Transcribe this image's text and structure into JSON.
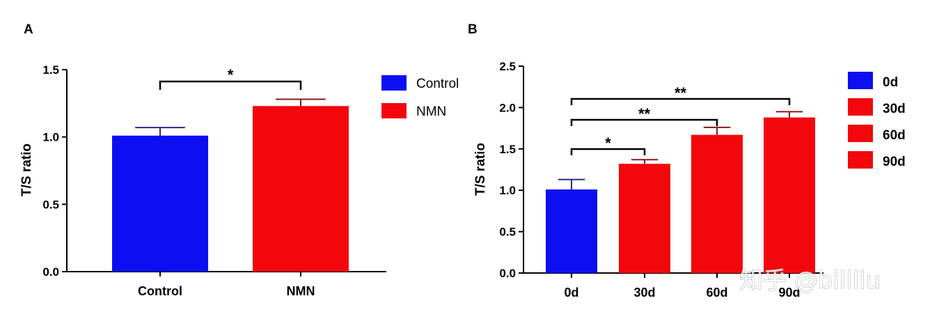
{
  "chart_data": [
    {
      "panel": "A",
      "type": "bar",
      "ylabel": "T/S ratio",
      "xlabel": "",
      "ylim": [
        0,
        1.5
      ],
      "yticks": [
        "0.0",
        "0.5",
        "1.0",
        "1.5"
      ],
      "categories": [
        "Control",
        "NMN"
      ],
      "values": [
        1.01,
        1.23
      ],
      "errors": [
        0.06,
        0.05
      ],
      "colors": [
        "#0d0ff2",
        "#f2080c"
      ],
      "legend": [
        {
          "label": "Control",
          "color": "#0d0ff2"
        },
        {
          "label": "NMN",
          "color": "#f2080c"
        }
      ],
      "legend_position": "right",
      "significance": [
        {
          "from": 0,
          "to": 1,
          "label": "*"
        }
      ]
    },
    {
      "panel": "B",
      "type": "bar",
      "ylabel": "T/S ratio",
      "xlabel": "",
      "ylim": [
        0,
        2.5
      ],
      "yticks": [
        "0.0",
        "0.5",
        "1.0",
        "1.5",
        "2.0",
        "2.5"
      ],
      "categories": [
        "0d",
        "30d",
        "60d",
        "90d"
      ],
      "values": [
        1.01,
        1.32,
        1.67,
        1.88
      ],
      "errors": [
        0.12,
        0.05,
        0.09,
        0.07
      ],
      "colors": [
        "#0d0ff2",
        "#f2080c",
        "#f2080c",
        "#f2080c"
      ],
      "legend": [
        {
          "label": "0d",
          "color": "#0d0ff2"
        },
        {
          "label": "30d",
          "color": "#f2080c"
        },
        {
          "label": "60d",
          "color": "#f2080c"
        },
        {
          "label": "90d",
          "color": "#f2080c"
        }
      ],
      "legend_position": "right",
      "significance": [
        {
          "from": 0,
          "to": 1,
          "label": "*"
        },
        {
          "from": 0,
          "to": 2,
          "label": "**"
        },
        {
          "from": 0,
          "to": 3,
          "label": "**"
        }
      ]
    }
  ],
  "watermark": "知乎 @billliu"
}
